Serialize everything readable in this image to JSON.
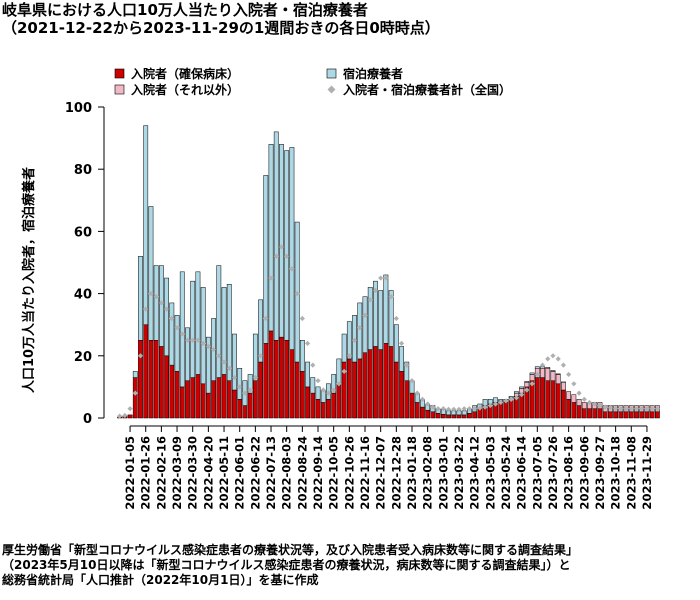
{
  "title": "岐阜県における人口10万人当たり入院者・宿泊療養者",
  "subtitle": "（2021-12-22から2023-11-29の1週間おきの各日0時時点）",
  "source_lines": [
    "厚生労働省「新型コロナウイルス感染症患者の療養状況等，及び入院患者受入病床数等に関する調査結果」",
    "（2023年5月10日以降は「新型コロナウイルス感染症患者の療養状況，病床数等に関する調査結果」）と",
    "総務省統計局「人口推計（2022年10月1日）」を基に作成"
  ],
  "chart_data": {
    "type": "bar",
    "ylabel": "人口10万人当たり入院者，宿泊療養者",
    "ylim": [
      0,
      100
    ],
    "yticks": [
      0,
      20,
      40,
      60,
      80,
      100
    ],
    "xtick_labels": [
      "2022-01-05",
      "2022-01-26",
      "2022-02-16",
      "2022-03-09",
      "2022-03-30",
      "2022-04-20",
      "2022-05-11",
      "2022-06-01",
      "2022-06-22",
      "2022-07-13",
      "2022-08-03",
      "2022-08-24",
      "2022-09-14",
      "2022-10-05",
      "2022-10-26",
      "2022-11-16",
      "2022-12-07",
      "2022-12-28",
      "2023-01-18",
      "2023-02-08",
      "2023-03-01",
      "2023-03-22",
      "2023-04-12",
      "2023-05-03",
      "2023-05-24",
      "2023-06-14",
      "2023-07-05",
      "2023-07-26",
      "2023-08-16",
      "2023-09-06",
      "2023-09-27",
      "2023-10-18",
      "2023-11-08",
      "2023-11-29"
    ],
    "tick_every": 3,
    "dates_start": "2021-12-22",
    "dates_end": "2023-11-29",
    "legend": [
      {
        "name": "入院者（確保病床）",
        "color": "#cc0000",
        "marker": "square"
      },
      {
        "name": "入院者（それ以外）",
        "color": "#f2b8c6",
        "marker": "square"
      },
      {
        "name": "宿泊療養者",
        "color": "#add8e6",
        "marker": "square"
      },
      {
        "name": "入院者・宿泊療養者計（全国）",
        "color": "#b0b0b0",
        "marker": "diamond"
      }
    ],
    "legend_position": "top",
    "series": [
      {
        "name": "入院者（確保病床）",
        "color": "#cc0000",
        "values": [
          0.3,
          0.5,
          1,
          13,
          25,
          30,
          25,
          25,
          23,
          20,
          17,
          15,
          10,
          12,
          13,
          14,
          11,
          8,
          12,
          13,
          14,
          12,
          9,
          6,
          4,
          8,
          12,
          18,
          24,
          28,
          25,
          26,
          25,
          22,
          18,
          15,
          10,
          8,
          6,
          5,
          6,
          8,
          11,
          18,
          19,
          18,
          19,
          21,
          22,
          23,
          22,
          24,
          23,
          18,
          15,
          12,
          8,
          5,
          3.5,
          2.5,
          2,
          1.5,
          1.2,
          1,
          1,
          1,
          1,
          1.5,
          2,
          3,
          4,
          4.5,
          5,
          5,
          5,
          6,
          7,
          8,
          10,
          12,
          13,
          13,
          12,
          12,
          11,
          9,
          6,
          5,
          4,
          3,
          3,
          3,
          3,
          2,
          2,
          2,
          2,
          2,
          2,
          2,
          2,
          2,
          2,
          2
        ]
      },
      {
        "name": "入院者（それ以外）",
        "color": "#f2b8c6",
        "values": [
          0,
          0,
          0,
          0,
          0,
          0,
          0,
          0,
          0,
          0,
          0,
          0,
          0,
          0,
          0,
          0,
          0,
          0,
          0,
          0,
          0,
          0,
          0,
          0,
          0,
          0,
          0,
          0,
          0,
          0,
          0,
          0,
          0,
          0,
          0,
          0,
          0,
          0,
          0,
          0,
          0,
          0,
          0,
          0,
          0,
          0,
          0,
          0,
          0,
          0,
          0,
          0,
          0,
          0,
          0,
          0,
          0,
          0,
          0,
          0,
          0,
          0,
          0,
          0,
          0,
          0,
          0,
          0,
          0,
          0,
          0,
          0,
          0,
          0.5,
          0.5,
          0.5,
          1,
          1.5,
          1.5,
          2,
          3,
          3,
          4,
          3,
          3,
          2.5,
          2.5,
          2.5,
          2,
          2,
          2,
          2,
          2,
          2,
          2,
          2,
          2,
          2,
          2,
          2,
          2,
          2,
          2,
          2
        ]
      },
      {
        "name": "宿泊療養者",
        "color": "#add8e6",
        "values": [
          0,
          0,
          0,
          2,
          27,
          64,
          43,
          24,
          26,
          25,
          20,
          18,
          37,
          17,
          31,
          33,
          31,
          18,
          20,
          36,
          28,
          31,
          18,
          10,
          8,
          6,
          15,
          20,
          54,
          60,
          67,
          62,
          61,
          65,
          45,
          10,
          8,
          5,
          4,
          4,
          5,
          6,
          8,
          9,
          12,
          15,
          18,
          18,
          20,
          21,
          19,
          22,
          18,
          12,
          8,
          6,
          4,
          3,
          2.5,
          2,
          2,
          1.5,
          1.5,
          1.3,
          1.3,
          1.3,
          1.3,
          1.5,
          2,
          1.5,
          2,
          1.5,
          1.5,
          0.5,
          0.5,
          0.5,
          0.5,
          0.5,
          0.3,
          0.5,
          0.5,
          0.5,
          0.3,
          0.3,
          0.2,
          0.1,
          0,
          0,
          0,
          0,
          0,
          0,
          0,
          0,
          0,
          0,
          0,
          0,
          0,
          0,
          0,
          0,
          0,
          0
        ]
      },
      {
        "name": "入院者・宿泊療養者計（全国）",
        "color": "#b0b0b0",
        "type": "scatter",
        "values": [
          0.6,
          0.8,
          3,
          8,
          20,
          35,
          40,
          39,
          37,
          35,
          32,
          29,
          27,
          25,
          25,
          25,
          24,
          23,
          22,
          20,
          18,
          16,
          13,
          10,
          8,
          9,
          13,
          20,
          32,
          45,
          52,
          55,
          52,
          48,
          40,
          32,
          24,
          17,
          12,
          9,
          8,
          9,
          11,
          15,
          20,
          25,
          29,
          33,
          38,
          41,
          45,
          45,
          39,
          32,
          24,
          17,
          12,
          8,
          6,
          4.5,
          3.5,
          3,
          3,
          2.8,
          2.8,
          2.8,
          3,
          3,
          3,
          3.2,
          3.5,
          4,
          4.5,
          5,
          5.5,
          6,
          6.5,
          7.5,
          9,
          11,
          14,
          17,
          19,
          20,
          19,
          17,
          14,
          11,
          8,
          6,
          5,
          4.5,
          4,
          3.5,
          3.3,
          3,
          3,
          3,
          3,
          3,
          3,
          3,
          3,
          3
        ]
      }
    ]
  }
}
